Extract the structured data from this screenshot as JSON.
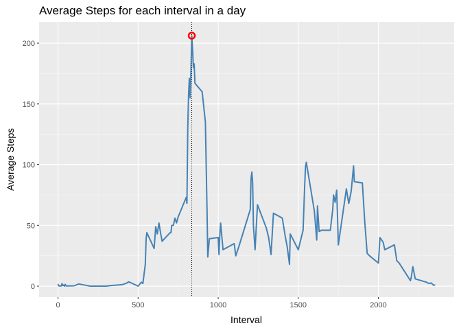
{
  "chart_data": {
    "type": "line",
    "title": "Average Steps for each interval in a day",
    "x_label": "Interval",
    "y_label": "Average Steps",
    "x": [
      0,
      5,
      10,
      15,
      20,
      25,
      30,
      35,
      40,
      45,
      50,
      55,
      100,
      130,
      200,
      300,
      330,
      400,
      430,
      440,
      450,
      500,
      520,
      530,
      545,
      550,
      555,
      600,
      610,
      620,
      630,
      640,
      650,
      700,
      705,
      710,
      720,
      730,
      740,
      750,
      800,
      805,
      810,
      815,
      820,
      825,
      830,
      835,
      840,
      845,
      850,
      855,
      900,
      920,
      930,
      935,
      945,
      1000,
      1005,
      1010,
      1015,
      1030,
      1100,
      1110,
      1130,
      1200,
      1205,
      1210,
      1215,
      1220,
      1230,
      1245,
      1300,
      1315,
      1330,
      1345,
      1400,
      1420,
      1430,
      1445,
      1450,
      1500,
      1530,
      1540,
      1545,
      1550,
      1600,
      1615,
      1620,
      1630,
      1645,
      1700,
      1715,
      1720,
      1730,
      1740,
      1745,
      1750,
      1800,
      1815,
      1830,
      1845,
      1850,
      1900,
      1915,
      1930,
      1945,
      2000,
      2010,
      2030,
      2040,
      2100,
      2115,
      2130,
      2200,
      2205,
      2215,
      2230,
      2300,
      2315,
      2330,
      2345,
      2355
    ],
    "series": [
      {
        "name": "steps",
        "color": "#4682b4",
        "values": [
          1.7,
          0.3,
          0.1,
          0.2,
          0.1,
          2.1,
          0.5,
          0.9,
          0,
          1.5,
          0.3,
          0.1,
          0.3,
          1.8,
          0,
          0,
          0.5,
          1.2,
          2.6,
          3.5,
          3.1,
          0,
          3.3,
          2.2,
          18,
          39,
          44,
          31,
          49,
          43,
          52,
          44,
          37,
          44,
          44,
          50,
          50,
          56,
          52,
          57,
          73,
          68,
          130,
          158,
          171,
          155,
          177,
          206.17,
          195,
          180,
          183,
          167,
          160,
          135,
          65,
          24,
          39,
          40,
          26,
          42,
          52,
          30,
          35,
          25,
          33,
          63,
          88,
          94,
          85,
          50,
          30,
          67,
          48,
          40,
          26,
          60,
          56,
          40,
          33,
          18,
          43,
          30,
          46,
          82,
          98,
          102,
          62,
          38,
          66,
          45,
          46,
          46,
          63,
          75,
          69,
          79,
          57,
          34,
          80,
          68,
          78,
          99,
          86,
          85,
          53,
          27,
          25,
          19,
          40,
          36,
          30,
          34,
          21,
          19,
          4.5,
          7,
          16,
          6,
          3.3,
          2.2,
          2.6,
          0.7,
          1.1
        ]
      }
    ],
    "highlight": {
      "x": 835,
      "y": 206.17,
      "color": "#ff0000"
    },
    "vline": 835,
    "xlim": [
      -118,
      2473
    ],
    "ylim": [
      -9,
      217.5
    ],
    "xticks": [
      0,
      500,
      1000,
      1500,
      2000
    ],
    "yticks": [
      0,
      50,
      100,
      150,
      200
    ],
    "xminor": [
      250,
      750,
      1250,
      1750,
      2250
    ],
    "yminor": [
      25,
      75,
      125,
      175
    ],
    "grid": true
  }
}
